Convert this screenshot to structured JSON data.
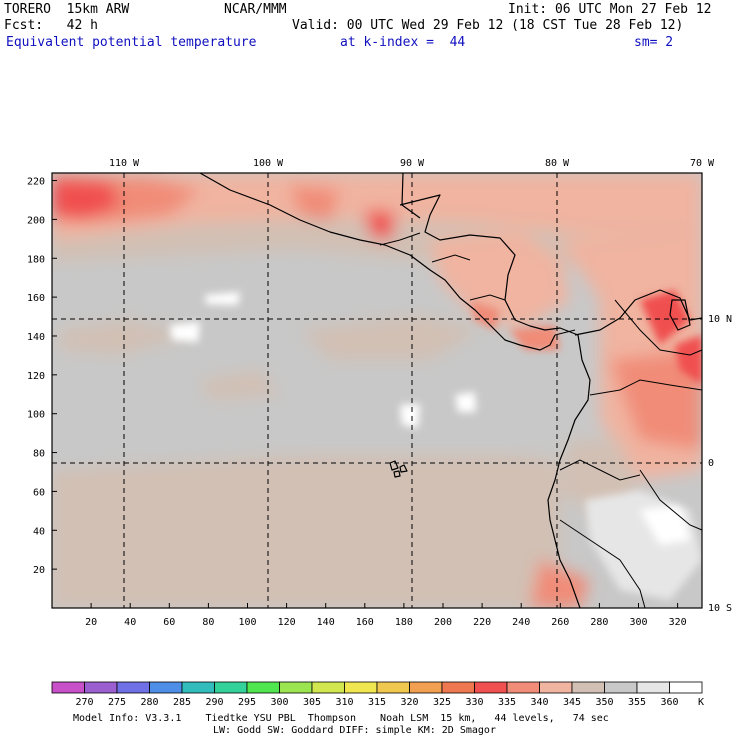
{
  "header": {
    "model": "TORERO  15km ARW",
    "org": "NCAR/MMM",
    "init": "Init: 06 UTC Mon 27 Feb 12",
    "fcst": "Fcst:   42 h",
    "valid": "Valid: 00 UTC Wed 29 Feb 12 (18 CST Tue 28 Feb 12)",
    "field": "Equivalent potential temperature",
    "level": "at k-index =  44",
    "smoothing": "sm= 2"
  },
  "map": {
    "lon_labels": [
      "110 W",
      "100 W",
      "90 W",
      "80 W",
      "70 W"
    ],
    "lat_labels": [
      "10 N",
      "0",
      "10 S"
    ],
    "x_ticks": [
      "20",
      "40",
      "60",
      "80",
      "100",
      "120",
      "140",
      "160",
      "180",
      "200",
      "220",
      "240",
      "260",
      "280",
      "300",
      "320"
    ],
    "y_ticks": [
      "20",
      "40",
      "60",
      "80",
      "100",
      "120",
      "140",
      "160",
      "180",
      "200",
      "220"
    ]
  },
  "colorbar": {
    "levels": [
      "270",
      "275",
      "280",
      "285",
      "290",
      "295",
      "300",
      "305",
      "310",
      "315",
      "320",
      "325",
      "330",
      "335",
      "340",
      "345",
      "350",
      "355",
      "360"
    ],
    "unit": "K",
    "colors": [
      "#c850c8",
      "#9b5fd0",
      "#7070e6",
      "#4f8ee6",
      "#32bcbc",
      "#32d29a",
      "#50e650",
      "#9be650",
      "#d2e650",
      "#f0e650",
      "#f0c850",
      "#f0a050",
      "#f07850",
      "#f05050",
      "#f08c78",
      "#f0b4a0",
      "#d2c0b4",
      "#c8c8c8",
      "#e6e6e6",
      "#ffffff"
    ]
  },
  "footer": {
    "line1": "Model Info: V3.3.1    Tiedtke YSU PBL  Thompson    Noah LSM  15 km,   44 levels,   74 sec",
    "line2": "LW: Godd SW: Goddard DIFF: simple KM: 2D Smagor"
  }
}
